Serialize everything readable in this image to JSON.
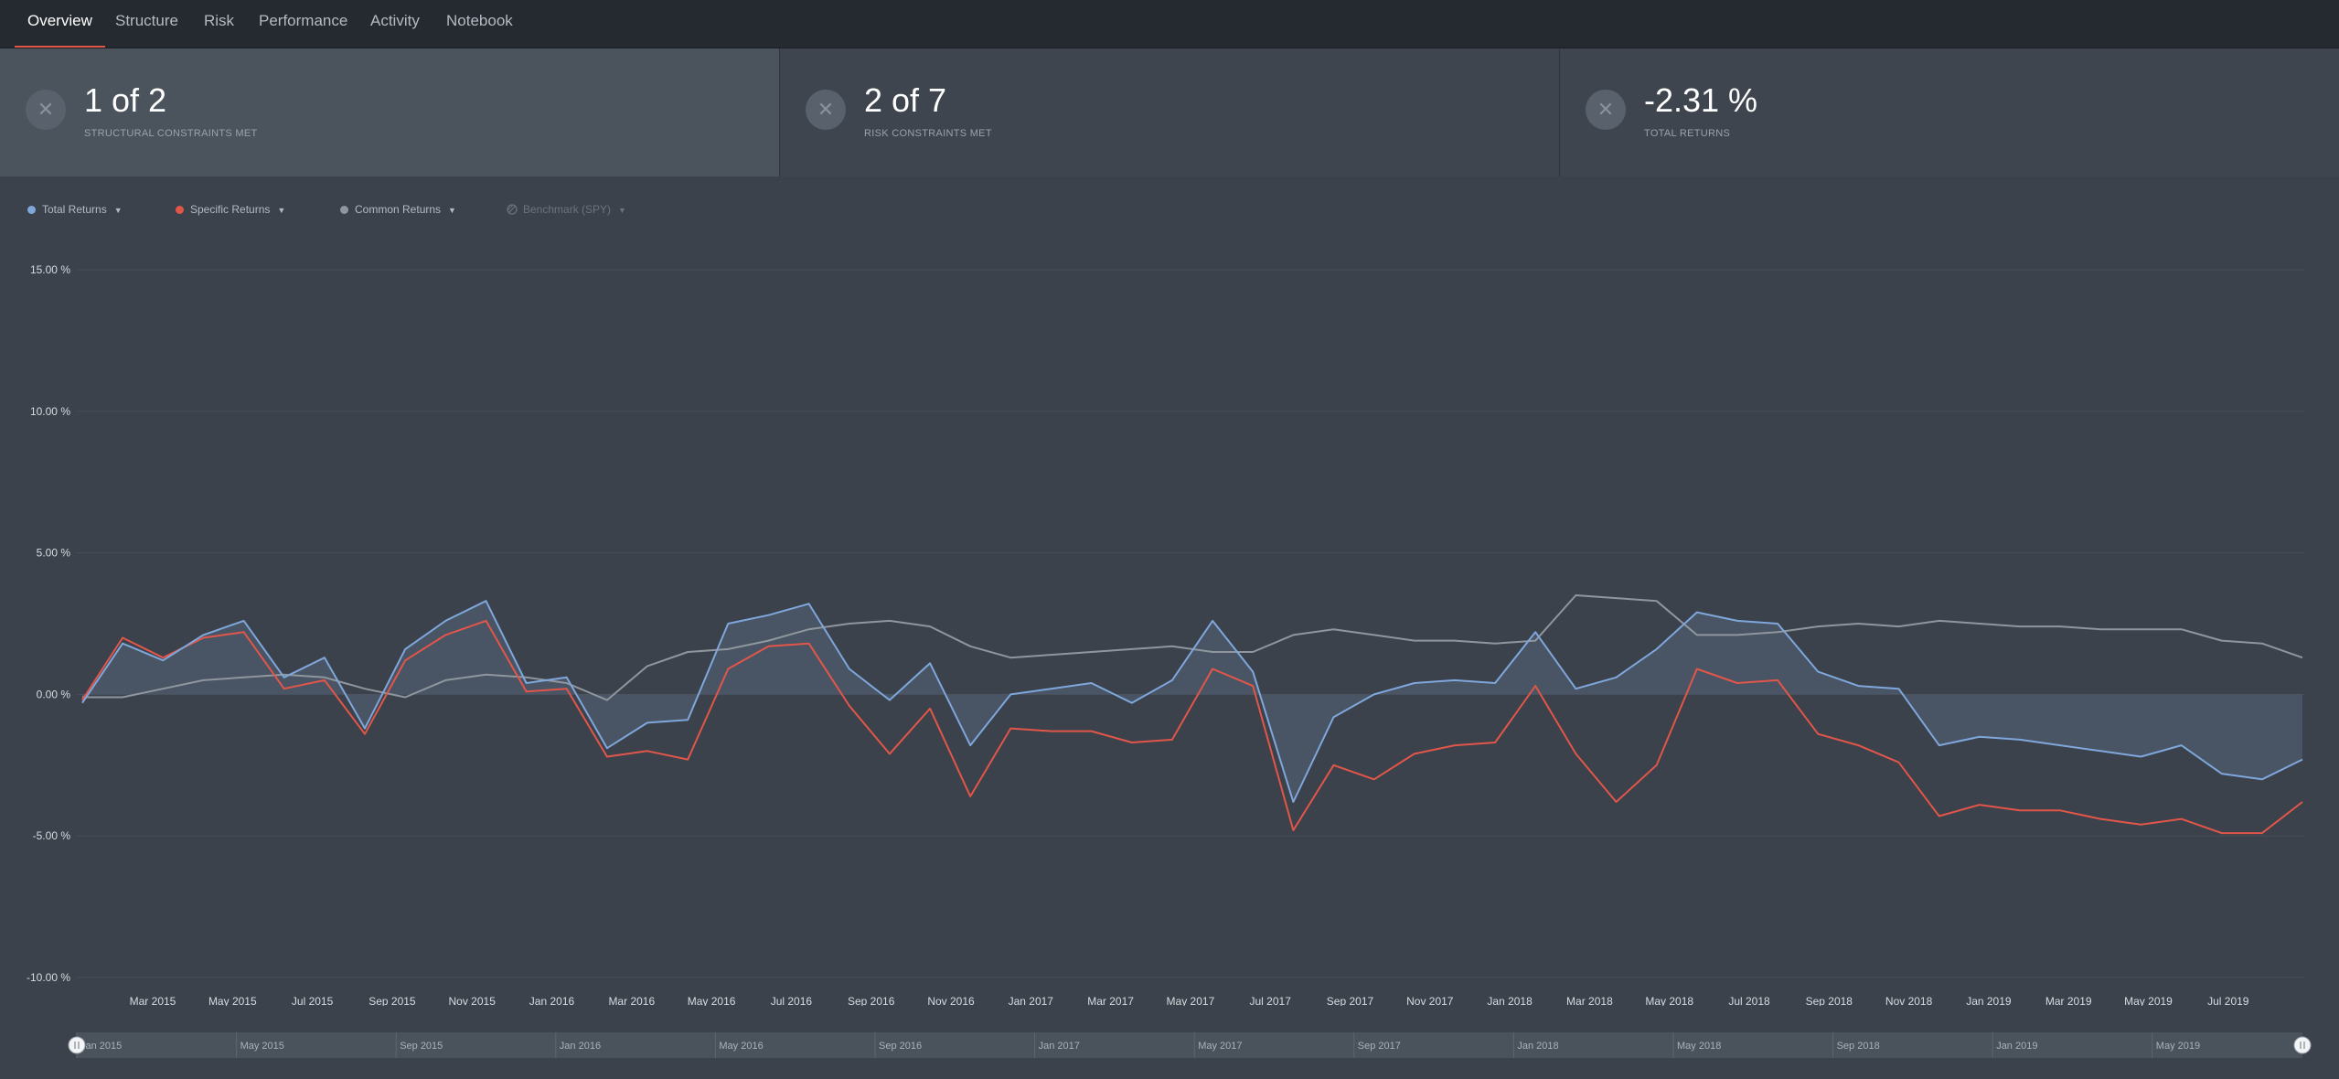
{
  "nav": {
    "tabs": [
      {
        "label": "Overview",
        "active": true
      },
      {
        "label": "Structure",
        "active": false
      },
      {
        "label": "Risk",
        "active": false
      },
      {
        "label": "Performance",
        "active": false
      },
      {
        "label": "Activity",
        "active": false
      },
      {
        "label": "Notebook",
        "active": false
      }
    ]
  },
  "cards": [
    {
      "value": "1 of 2",
      "label": "STRUCTURAL CONSTRAINTS MET",
      "icon": "close-icon"
    },
    {
      "value": "2 of 7",
      "label": "RISK CONSTRAINTS MET",
      "icon": "close-icon"
    },
    {
      "value": "-2.31 %",
      "label": "TOTAL RETURNS",
      "icon": "close-icon"
    }
  ],
  "legend": [
    {
      "label": "Total Returns",
      "color": "#7fa7dc"
    },
    {
      "label": "Specific Returns",
      "color": "#e2564a"
    },
    {
      "label": "Common Returns",
      "color": "#8f969d"
    },
    {
      "label": "Benchmark (SPY)",
      "color": "#6b737c",
      "disabled": true
    }
  ],
  "chart_data": {
    "type": "line",
    "ylim": [
      -10,
      15
    ],
    "y_ticks": [
      "15.00 %",
      "10.00 %",
      "5.00 %",
      "0.00 %",
      "-5.00 %",
      "-10.00 %"
    ],
    "x_ticks": [
      "Mar 2015",
      "May 2015",
      "Jul 2015",
      "Sep 2015",
      "Nov 2015",
      "Jan 2016",
      "Mar 2016",
      "May 2016",
      "Jul 2016",
      "Sep 2016",
      "Nov 2016",
      "Jan 2017",
      "Mar 2017",
      "May 2017",
      "Jul 2017",
      "Sep 2017",
      "Nov 2017",
      "Jan 2018",
      "Mar 2018",
      "May 2018",
      "Jul 2018",
      "Sep 2018",
      "Nov 2018",
      "Jan 2019",
      "Mar 2019",
      "May 2019",
      "Jul 2019"
    ],
    "navigator_ticks": [
      "Jan 2015",
      "May 2015",
      "Sep 2015",
      "Jan 2016",
      "May 2016",
      "Sep 2016",
      "Jan 2017",
      "May 2017",
      "Sep 2017",
      "Jan 2018",
      "May 2018",
      "Sep 2018",
      "Jan 2019",
      "May 2019"
    ],
    "x": [
      "2015-01",
      "2015-02",
      "2015-03",
      "2015-04",
      "2015-05",
      "2015-06",
      "2015-07",
      "2015-08",
      "2015-09",
      "2015-10",
      "2015-11",
      "2015-12",
      "2016-01",
      "2016-02",
      "2016-03",
      "2016-04",
      "2016-05",
      "2016-06",
      "2016-07",
      "2016-08",
      "2016-09",
      "2016-10",
      "2016-11",
      "2016-12",
      "2017-01",
      "2017-02",
      "2017-03",
      "2017-04",
      "2017-05",
      "2017-06",
      "2017-07",
      "2017-08",
      "2017-09",
      "2017-10",
      "2017-11",
      "2017-12",
      "2018-01",
      "2018-02",
      "2018-03",
      "2018-04",
      "2018-05",
      "2018-06",
      "2018-07",
      "2018-08",
      "2018-09",
      "2018-10",
      "2018-11",
      "2018-12",
      "2019-01",
      "2019-02",
      "2019-03",
      "2019-04",
      "2019-05",
      "2019-06",
      "2019-07",
      "2019-08"
    ],
    "series": [
      {
        "name": "Total Returns",
        "color": "#7fa7dc",
        "values": [
          -0.3,
          1.8,
          1.2,
          2.1,
          2.6,
          0.6,
          1.3,
          -1.2,
          1.6,
          2.6,
          3.3,
          0.4,
          0.6,
          -1.9,
          -1.0,
          -0.9,
          2.5,
          2.8,
          3.2,
          0.9,
          -0.2,
          1.1,
          -1.8,
          0.0,
          0.2,
          0.4,
          -0.3,
          0.5,
          2.6,
          0.8,
          -3.8,
          -0.8,
          0.0,
          0.4,
          0.5,
          0.4,
          2.2,
          0.2,
          0.6,
          1.6,
          2.9,
          2.6,
          2.5,
          0.8,
          0.3,
          0.2,
          -1.8,
          -1.5,
          -1.6,
          -1.8,
          -2.0,
          -2.2,
          -1.8,
          -2.8,
          -3.0,
          -2.3
        ]
      },
      {
        "name": "Specific Returns",
        "color": "#e2564a",
        "values": [
          -0.2,
          2.0,
          1.3,
          2.0,
          2.2,
          0.2,
          0.5,
          -1.4,
          1.2,
          2.1,
          2.6,
          0.1,
          0.2,
          -2.2,
          -2.0,
          -2.3,
          0.9,
          1.7,
          1.8,
          -0.4,
          -2.1,
          -0.5,
          -3.6,
          -1.2,
          -1.3,
          -1.3,
          -1.7,
          -1.6,
          0.9,
          0.3,
          -4.8,
          -2.5,
          -3.0,
          -2.1,
          -1.8,
          -1.7,
          0.3,
          -2.1,
          -3.8,
          -2.5,
          0.9,
          0.4,
          0.5,
          -1.4,
          -1.8,
          -2.4,
          -4.3,
          -3.9,
          -4.1,
          -4.1,
          -4.4,
          -4.6,
          -4.4,
          -4.9,
          -4.9,
          -3.8
        ]
      },
      {
        "name": "Common Returns",
        "color": "#8f969d",
        "values": [
          -0.1,
          -0.1,
          0.2,
          0.5,
          0.6,
          0.7,
          0.6,
          0.2,
          -0.1,
          0.5,
          0.7,
          0.6,
          0.4,
          -0.2,
          1.0,
          1.5,
          1.6,
          1.9,
          2.3,
          2.5,
          2.6,
          2.4,
          1.7,
          1.3,
          1.4,
          1.5,
          1.6,
          1.7,
          1.5,
          1.5,
          2.1,
          2.3,
          2.1,
          1.9,
          1.9,
          1.8,
          1.9,
          3.5,
          3.4,
          3.3,
          2.1,
          2.1,
          2.2,
          2.4,
          2.5,
          2.4,
          2.6,
          2.5,
          2.4,
          2.4,
          2.3,
          2.3,
          2.3,
          1.9,
          1.8,
          1.3
        ]
      }
    ]
  }
}
